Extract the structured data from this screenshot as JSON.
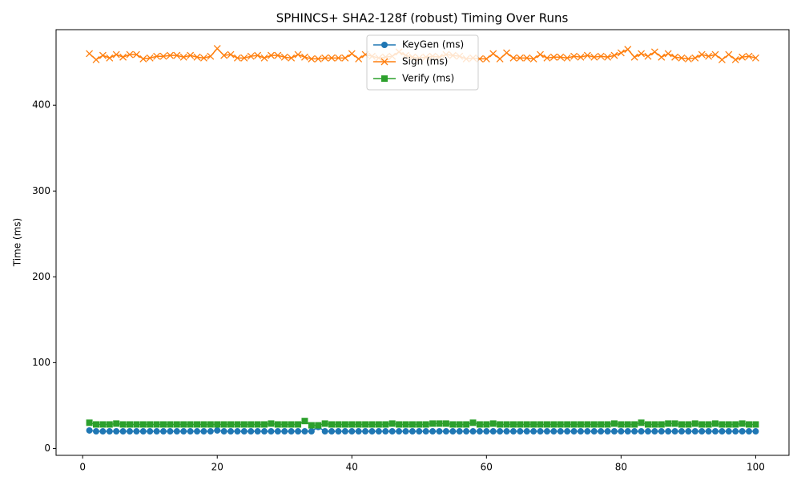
{
  "chart_data": {
    "type": "line",
    "title": "SPHINCS+ SHA2-128f (robust) Timing Over Runs",
    "y_label": "Time (ms)",
    "x": [
      1,
      2,
      3,
      4,
      5,
      6,
      7,
      8,
      9,
      10,
      11,
      12,
      13,
      14,
      15,
      16,
      17,
      18,
      19,
      20,
      21,
      22,
      23,
      24,
      25,
      26,
      27,
      28,
      29,
      30,
      31,
      32,
      33,
      34,
      35,
      36,
      37,
      38,
      39,
      40,
      41,
      42,
      43,
      44,
      45,
      46,
      47,
      48,
      49,
      50,
      51,
      52,
      53,
      54,
      55,
      56,
      57,
      58,
      59,
      60,
      61,
      62,
      63,
      64,
      65,
      66,
      67,
      68,
      69,
      70,
      71,
      72,
      73,
      74,
      75,
      76,
      77,
      78,
      79,
      80,
      81,
      82,
      83,
      84,
      85,
      86,
      87,
      88,
      89,
      90,
      91,
      92,
      93,
      94,
      95,
      96,
      97,
      98,
      99,
      100
    ],
    "series": [
      {
        "name": "KeyGen (ms)",
        "color": "#1f77b4",
        "marker": "circle",
        "values": [
          21,
          20,
          20,
          20,
          20,
          20,
          20,
          20,
          20,
          20,
          20,
          20,
          20,
          20,
          20,
          20,
          20,
          20,
          20,
          21,
          20,
          20,
          20,
          20,
          20,
          20,
          20,
          20,
          20,
          20,
          20,
          20,
          20,
          20,
          25,
          20,
          20,
          20,
          20,
          20,
          20,
          20,
          20,
          20,
          20,
          20,
          20,
          20,
          20,
          20,
          20,
          20,
          20,
          20,
          20,
          20,
          20,
          20,
          20,
          20,
          20,
          20,
          20,
          20,
          20,
          20,
          20,
          20,
          20,
          20,
          20,
          20,
          20,
          20,
          20,
          20,
          20,
          20,
          20,
          20,
          20,
          20,
          20,
          20,
          20,
          20,
          20,
          20,
          20,
          20,
          20,
          20,
          20,
          20,
          20,
          20,
          20,
          20,
          20,
          20
        ]
      },
      {
        "name": "Sign (ms)",
        "color": "#ff7f0e",
        "marker": "x",
        "values": [
          460,
          453,
          458,
          455,
          459,
          456,
          459,
          459,
          454,
          455,
          457,
          457,
          458,
          458,
          456,
          458,
          456,
          455,
          457,
          466,
          458,
          459,
          455,
          455,
          457,
          458,
          455,
          458,
          458,
          456,
          455,
          459,
          456,
          454,
          454,
          455,
          455,
          455,
          455,
          460,
          454,
          459,
          457,
          455,
          456,
          457,
          462,
          458,
          456,
          455,
          456,
          457,
          456,
          459,
          458,
          457,
          454,
          455,
          454,
          454,
          460,
          454,
          461,
          455,
          455,
          455,
          454,
          459,
          455,
          456,
          456,
          455,
          457,
          456,
          458,
          456,
          457,
          456,
          458,
          461,
          465,
          456,
          460,
          457,
          462,
          456,
          460,
          456,
          455,
          454,
          455,
          459,
          457,
          459,
          453,
          459,
          453,
          456,
          457,
          455
        ]
      },
      {
        "name": "Verify (ms)",
        "color": "#2ca02c",
        "marker": "square",
        "values": [
          30,
          28,
          28,
          28,
          29,
          28,
          28,
          28,
          28,
          28,
          28,
          28,
          28,
          28,
          28,
          28,
          28,
          28,
          28,
          28,
          28,
          28,
          28,
          28,
          28,
          28,
          28,
          29,
          28,
          28,
          28,
          28,
          32,
          27,
          27,
          29,
          28,
          28,
          28,
          28,
          28,
          28,
          28,
          28,
          28,
          29,
          28,
          28,
          28,
          28,
          28,
          29,
          29,
          29,
          28,
          28,
          28,
          30,
          28,
          28,
          29,
          28,
          28,
          28,
          28,
          28,
          28,
          28,
          28,
          28,
          28,
          28,
          28,
          28,
          28,
          28,
          28,
          28,
          29,
          28,
          28,
          28,
          30,
          28,
          28,
          28,
          29,
          29,
          28,
          28,
          29,
          28,
          28,
          29,
          28,
          28,
          28,
          29,
          28,
          28
        ]
      }
    ],
    "xlim": [
      -3.95,
      104.95
    ],
    "ylim": [
      -8,
      488
    ],
    "xticks": [
      0,
      20,
      40,
      60,
      80,
      100
    ],
    "yticks": [
      0,
      100,
      200,
      300,
      400
    ],
    "legend": "upper center"
  }
}
